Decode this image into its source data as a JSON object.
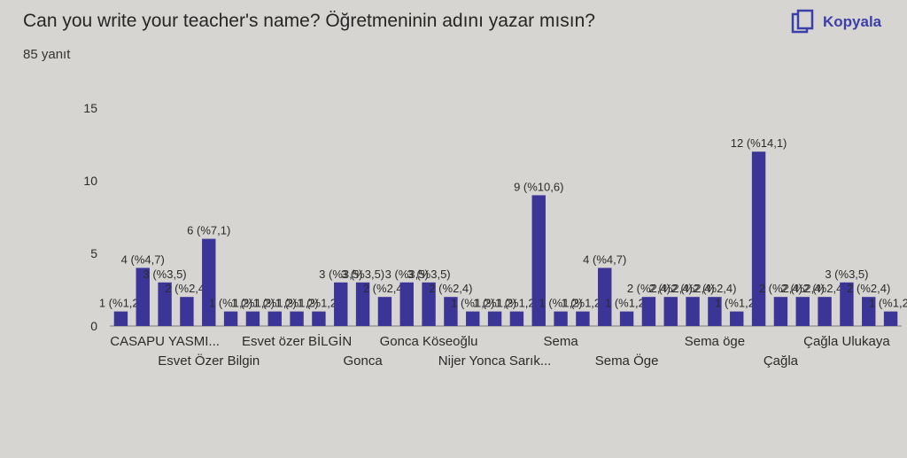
{
  "question": {
    "title": "Can you write your teacher's name? Öğretmeninin adını yazar mısın?",
    "response_count": "85 yanıt"
  },
  "copy_button": {
    "label": "Kopyala",
    "icon": "copy-icon"
  },
  "colors": {
    "bar": "#3c3598",
    "axis": "#7a7a7a",
    "copy_accent": "#3b3fa8"
  },
  "chart_data": {
    "type": "bar",
    "ylim": [
      0,
      15
    ],
    "y_ticks": [
      0,
      5,
      10,
      15
    ],
    "grid": false,
    "values": [
      1,
      4,
      3,
      2,
      6,
      1,
      1,
      1,
      1,
      1,
      3,
      3,
      2,
      3,
      3,
      2,
      1,
      1,
      1,
      9,
      1,
      1,
      4,
      1,
      2,
      2,
      2,
      2,
      1,
      12,
      2,
      2,
      2,
      3,
      2,
      1
    ],
    "data_labels": [
      "1 (%1,2)",
      "4 (%4,7)",
      "3 (%3,5)",
      "2 (%2,4)",
      "6 (%7,1)",
      "1 (%1,2)",
      "1 (%1,2)",
      "1 (%1,2)",
      "1 (%1,2)",
      "1 (%1,2)",
      "3 (%3,5)",
      "3 (%3,5)",
      "2 (%2,4)",
      "3 (%3,5)",
      "3 (%3,5)",
      "2 (%2,4)",
      "1 (%1,2)",
      "1 (%1,2)",
      "1 (%1,2)",
      "9 (%10,6)",
      "1 (%1,2)",
      "1 (%1,2)",
      "4 (%4,7)",
      "1 (%1,2)",
      "2 (%2,4)",
      "2 (%2,4)",
      "2 (%2,4)",
      "2 (%2,4)",
      "1 (%1,2)",
      "12 (%14,1)",
      "2 (%2,4)",
      "2 (%2,4)",
      "2 (%2,4)",
      "3 (%3,5)",
      "2 (%2,4)",
      "1 (%1,2)"
    ],
    "x_tick_labels": [
      {
        "index": 2,
        "row": 1,
        "text": "CASAPU YASMI..."
      },
      {
        "index": 4,
        "row": 2,
        "text": "Esvet Özer Bilgin"
      },
      {
        "index": 8,
        "row": 1,
        "text": "Esvet özer BİLGİN"
      },
      {
        "index": 11,
        "row": 2,
        "text": "Gonca"
      },
      {
        "index": 14,
        "row": 1,
        "text": "Gonca Köseoğlu"
      },
      {
        "index": 17,
        "row": 2,
        "text": "Nijer Yonca Sarık..."
      },
      {
        "index": 20,
        "row": 1,
        "text": "Sema"
      },
      {
        "index": 23,
        "row": 2,
        "text": "Sema Öge"
      },
      {
        "index": 27,
        "row": 1,
        "text": "Sema öge"
      },
      {
        "index": 30,
        "row": 2,
        "text": "Çağla"
      },
      {
        "index": 33,
        "row": 1,
        "text": "Çağla Ulukaya"
      }
    ]
  }
}
